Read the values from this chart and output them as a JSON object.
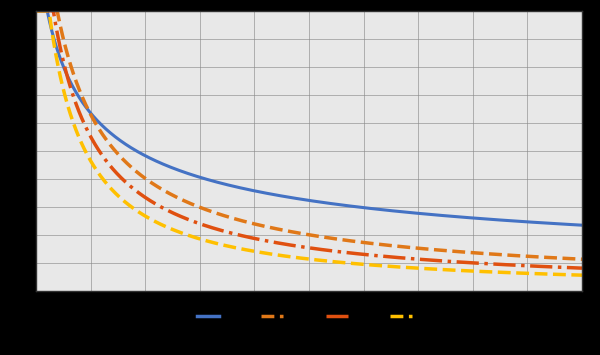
{
  "background_color": "#000000",
  "plot_bg_color": "#e8e8e8",
  "xlim": [
    0,
    10
  ],
  "ylim": [
    0,
    1
  ],
  "series": [
    {
      "label": "",
      "color": "#4472c4",
      "linestyle": "solid",
      "linewidth": 2.2,
      "a": 0.72,
      "b": 0.62
    },
    {
      "label": "",
      "color": "#e07818",
      "linestyle": "dashed",
      "linewidth": 2.5,
      "a": 0.68,
      "b": 0.9
    },
    {
      "label": "",
      "color": "#e05010",
      "linestyle": "dashdot",
      "linewidth": 2.5,
      "a": 0.6,
      "b": 1.05
    },
    {
      "label": "",
      "color": "#ffc000",
      "linestyle": "dashed",
      "linewidth": 2.5,
      "a": 0.52,
      "b": 1.2
    }
  ],
  "grid_color": "#888888",
  "spine_color": "#333333",
  "tick_color": "#cccccc",
  "legend_colors": [
    "#4472c4",
    "#e07818",
    "#e05010",
    "#ffc000"
  ],
  "legend_linestyles": [
    "solid",
    "dashed",
    "dashdot",
    "dashed"
  ],
  "legend_fontsize": 8,
  "tick_fontsize": 8,
  "xticks": [
    0,
    1,
    2,
    3,
    4,
    5,
    6,
    7,
    8,
    9,
    10
  ],
  "yticks": [
    0.0,
    0.1,
    0.2,
    0.3,
    0.4,
    0.5,
    0.6,
    0.7,
    0.8,
    0.9,
    1.0
  ]
}
